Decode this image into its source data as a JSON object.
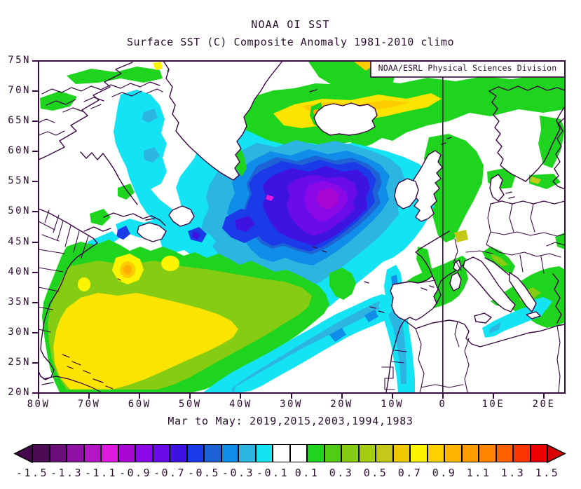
{
  "header": {
    "title": "NOAA OI SST",
    "subtitle": "Surface SST (C) Composite Anomaly 1981-2010 climo",
    "credit": "NOAA/ESRL Physical Sciences Division"
  },
  "caption": "Mar to May: 2019,2015,2003,1994,1983",
  "axes": {
    "lat_labels": [
      "75N",
      "70N",
      "65N",
      "60N",
      "55N",
      "50N",
      "45N",
      "40N",
      "35N",
      "30N",
      "25N",
      "20N"
    ],
    "lon_labels": [
      "80W",
      "70W",
      "60W",
      "50W",
      "40W",
      "30W",
      "20W",
      "10W",
      "0",
      "10E",
      "20E"
    ]
  },
  "colorbar": {
    "tick_labels": [
      "-1.5",
      "-1.3",
      "-1.1",
      "-0.9",
      "-0.7",
      "-0.5",
      "-0.3",
      "-0.1",
      "0.1",
      "0.3",
      "0.5",
      "0.7",
      "0.9",
      "1.1",
      "1.3",
      "1.5"
    ],
    "box_colors": [
      "#4C0B54",
      "#6C0F78",
      "#8F12A4",
      "#B416C6",
      "#DE18DE",
      "#A806D2",
      "#8B09E6",
      "#6A0BE9",
      "#3E13E2",
      "#1B3BE9",
      "#1D63D6",
      "#108DE9",
      "#2DB5E2",
      "#13E3F2",
      "#FFFFFF",
      "#FFFFFF",
      "#1ED41E",
      "#51CC15",
      "#85CC12",
      "#A5CC10",
      "#C3C916",
      "#EFC900",
      "#FDF400",
      "#FFD000",
      "#FFB400",
      "#FF9C00",
      "#FF8400",
      "#FF6000",
      "#FB3500",
      "#EC0000"
    ],
    "left_arrow_color": "#45094C",
    "right_arrow_color": "#DC0000",
    "border_color": "#000000"
  },
  "palette": {
    "cyan": "#13E3F2",
    "sky": "#2DB5E2",
    "azure": "#108DE9",
    "steel": "#1D63D6",
    "royal": "#1B3BE9",
    "blue": "#3E13E2",
    "violet": "#6A0BE9",
    "purple": "#8B09E6",
    "lavender": "#A806D2",
    "magenta": "#DE18DE",
    "green": "#1ED41E",
    "green2": "#51CC15",
    "ygreen": "#85CC12",
    "olive": "#C3C916",
    "yellow": "#FBE400",
    "byellow": "#FDF400",
    "gold": "#FFCC00",
    "orange": "#FFAE00",
    "white": "#FFFFFF"
  },
  "map": {
    "frame_color": "#3A0842",
    "coastline_color": "#3A0842",
    "text_color": "#2A0E2E",
    "meridian_longitude": "0"
  },
  "chart_data": {
    "type": "heatmap",
    "title": "NOAA OI SST",
    "subtitle": "Surface SST (C) Composite Anomaly 1981-2010 climo",
    "caption": "Mar to May: 2019,2015,2003,1994,1983",
    "variable": "sea surface temperature composite anomaly",
    "units": "C",
    "climatology": "1981-2010",
    "season": "Mar to May",
    "composite_years": [
      2019,
      2015,
      2003,
      1994,
      1983
    ],
    "lat_range": [
      "20N",
      "75N"
    ],
    "lon_range": [
      "80W",
      "25E"
    ],
    "lat_ticks": [
      "75N",
      "70N",
      "65N",
      "60N",
      "55N",
      "50N",
      "45N",
      "40N",
      "35N",
      "30N",
      "25N",
      "20N"
    ],
    "lon_ticks": [
      "80W",
      "70W",
      "60W",
      "50W",
      "40W",
      "30W",
      "20W",
      "10W",
      "0",
      "10E",
      "20E"
    ],
    "contour_interval": 0.1,
    "colorbar_ticks": [
      -1.5,
      -1.3,
      -1.1,
      -0.9,
      -0.7,
      -0.5,
      -0.3,
      -0.1,
      0.1,
      0.3,
      0.5,
      0.7,
      0.9,
      1.1,
      1.3,
      1.5
    ],
    "legend_position": "bottom",
    "features": [
      {
        "region": "central subpolar North Atlantic cold blob core (~30W, 53N)",
        "anomaly": -1.1
      },
      {
        "region": "cold blob outer extent (50W-15W, 44N-62N)",
        "anomaly": -0.2
      },
      {
        "region": "Davis Strait / west of Greenland",
        "anomaly": -0.3
      },
      {
        "region": "Nova Scotia / Gulf of Maine coastal water",
        "anomaly": -0.5
      },
      {
        "region": "western subtropical Atlantic / Sargasso Sea",
        "anomaly": 0.5
      },
      {
        "region": "warm spot near 63W, 40N",
        "anomaly": 1.0
      },
      {
        "region": "warm yellow core 65W-75W, 25N-32N",
        "anomaly": 0.7
      },
      {
        "region": "subtropical band 20N-32N mid-basin to NW Africa",
        "anomaly": -0.3
      },
      {
        "region": "Portugal / Morocco coastal strip",
        "anomaly": -0.4
      },
      {
        "region": "Norwegian and Greenland Seas band (65N-73N)",
        "anomaly": 0.4
      },
      {
        "region": "yellow core north of Iceland",
        "anomaly": 0.8
      },
      {
        "region": "North Sea",
        "anomaly": 0.3
      },
      {
        "region": "Baltic and Gulf of Bothnia patches",
        "anomaly": 0.3
      },
      {
        "region": "western Mediterranean",
        "anomaly": 0.2
      },
      {
        "region": "Adriatic / Aegean / Ionian Seas",
        "anomaly": 0.3
      },
      {
        "region": "Gulf of Sidra coastal (Libya)",
        "anomaly": -0.2
      }
    ]
  }
}
